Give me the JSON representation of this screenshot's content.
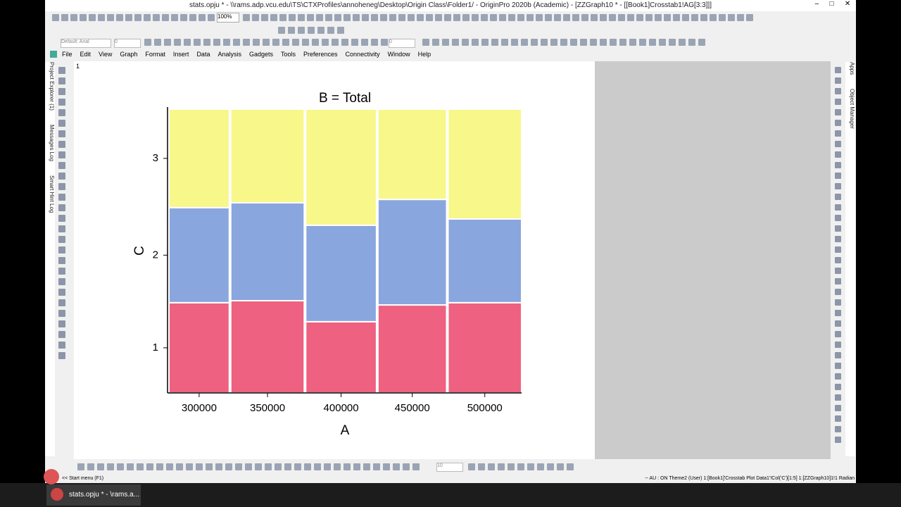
{
  "window": {
    "title": "stats.opju * - \\\\rams.adp.vcu.edu\\TS\\CTXProfiles\\annoheneg\\Desktop\\Origin Class\\Folder1/ - OriginPro 2020b (Academic) - [ZZGraph10 * - [[Book1]Crosstab1!AG[3:3]]]"
  },
  "toolbar": {
    "zoom": "100%",
    "font": "Default: Arial",
    "font_size": "0",
    "line_width": "0",
    "bottom_size": "10"
  },
  "menu": [
    "File",
    "Edit",
    "View",
    "Graph",
    "Format",
    "Insert",
    "Data",
    "Analysis",
    "Gadgets",
    "Tools",
    "Preferences",
    "Connectivity",
    "Window",
    "Help"
  ],
  "side_tabs": [
    "Project Explorer (1)",
    "Messages Log",
    "Smart Hint Log"
  ],
  "right_tabs": [
    "Apps",
    "Object Manager"
  ],
  "layer_label": "1",
  "chart_data": {
    "type": "mosaic",
    "title": "B = Total",
    "x_label": "A",
    "y_label": "C",
    "categories": [
      "300000",
      "350000",
      "400000",
      "450000",
      "500000"
    ],
    "widths": [
      17.4,
      21.2,
      20.4,
      19.8,
      21.2
    ],
    "ylim": [
      0,
      100
    ],
    "series": [
      {
        "name": "1",
        "color": "#ee6180",
        "values": [
          31.8,
          32.5,
          25.1,
          31.0,
          31.8
        ]
      },
      {
        "name": "2",
        "color": "#8aa6de",
        "values": [
          33.5,
          34.5,
          34.0,
          37.2,
          29.5
        ]
      },
      {
        "name": "3",
        "color": "#f7f78a",
        "values": [
          34.7,
          33.0,
          40.9,
          31.8,
          38.7
        ]
      }
    ]
  },
  "status": {
    "start_menu": "<< Start menu (F1)",
    "info": "-- AU : ON  Theme2 (User)  1:[Book1]'Crosstab Plot Data1'!Col('C')[1:5]  1:[ZZGraph10]1!1  Radian"
  },
  "taskbar": {
    "item": "stats.opju * - \\rams.a..."
  }
}
